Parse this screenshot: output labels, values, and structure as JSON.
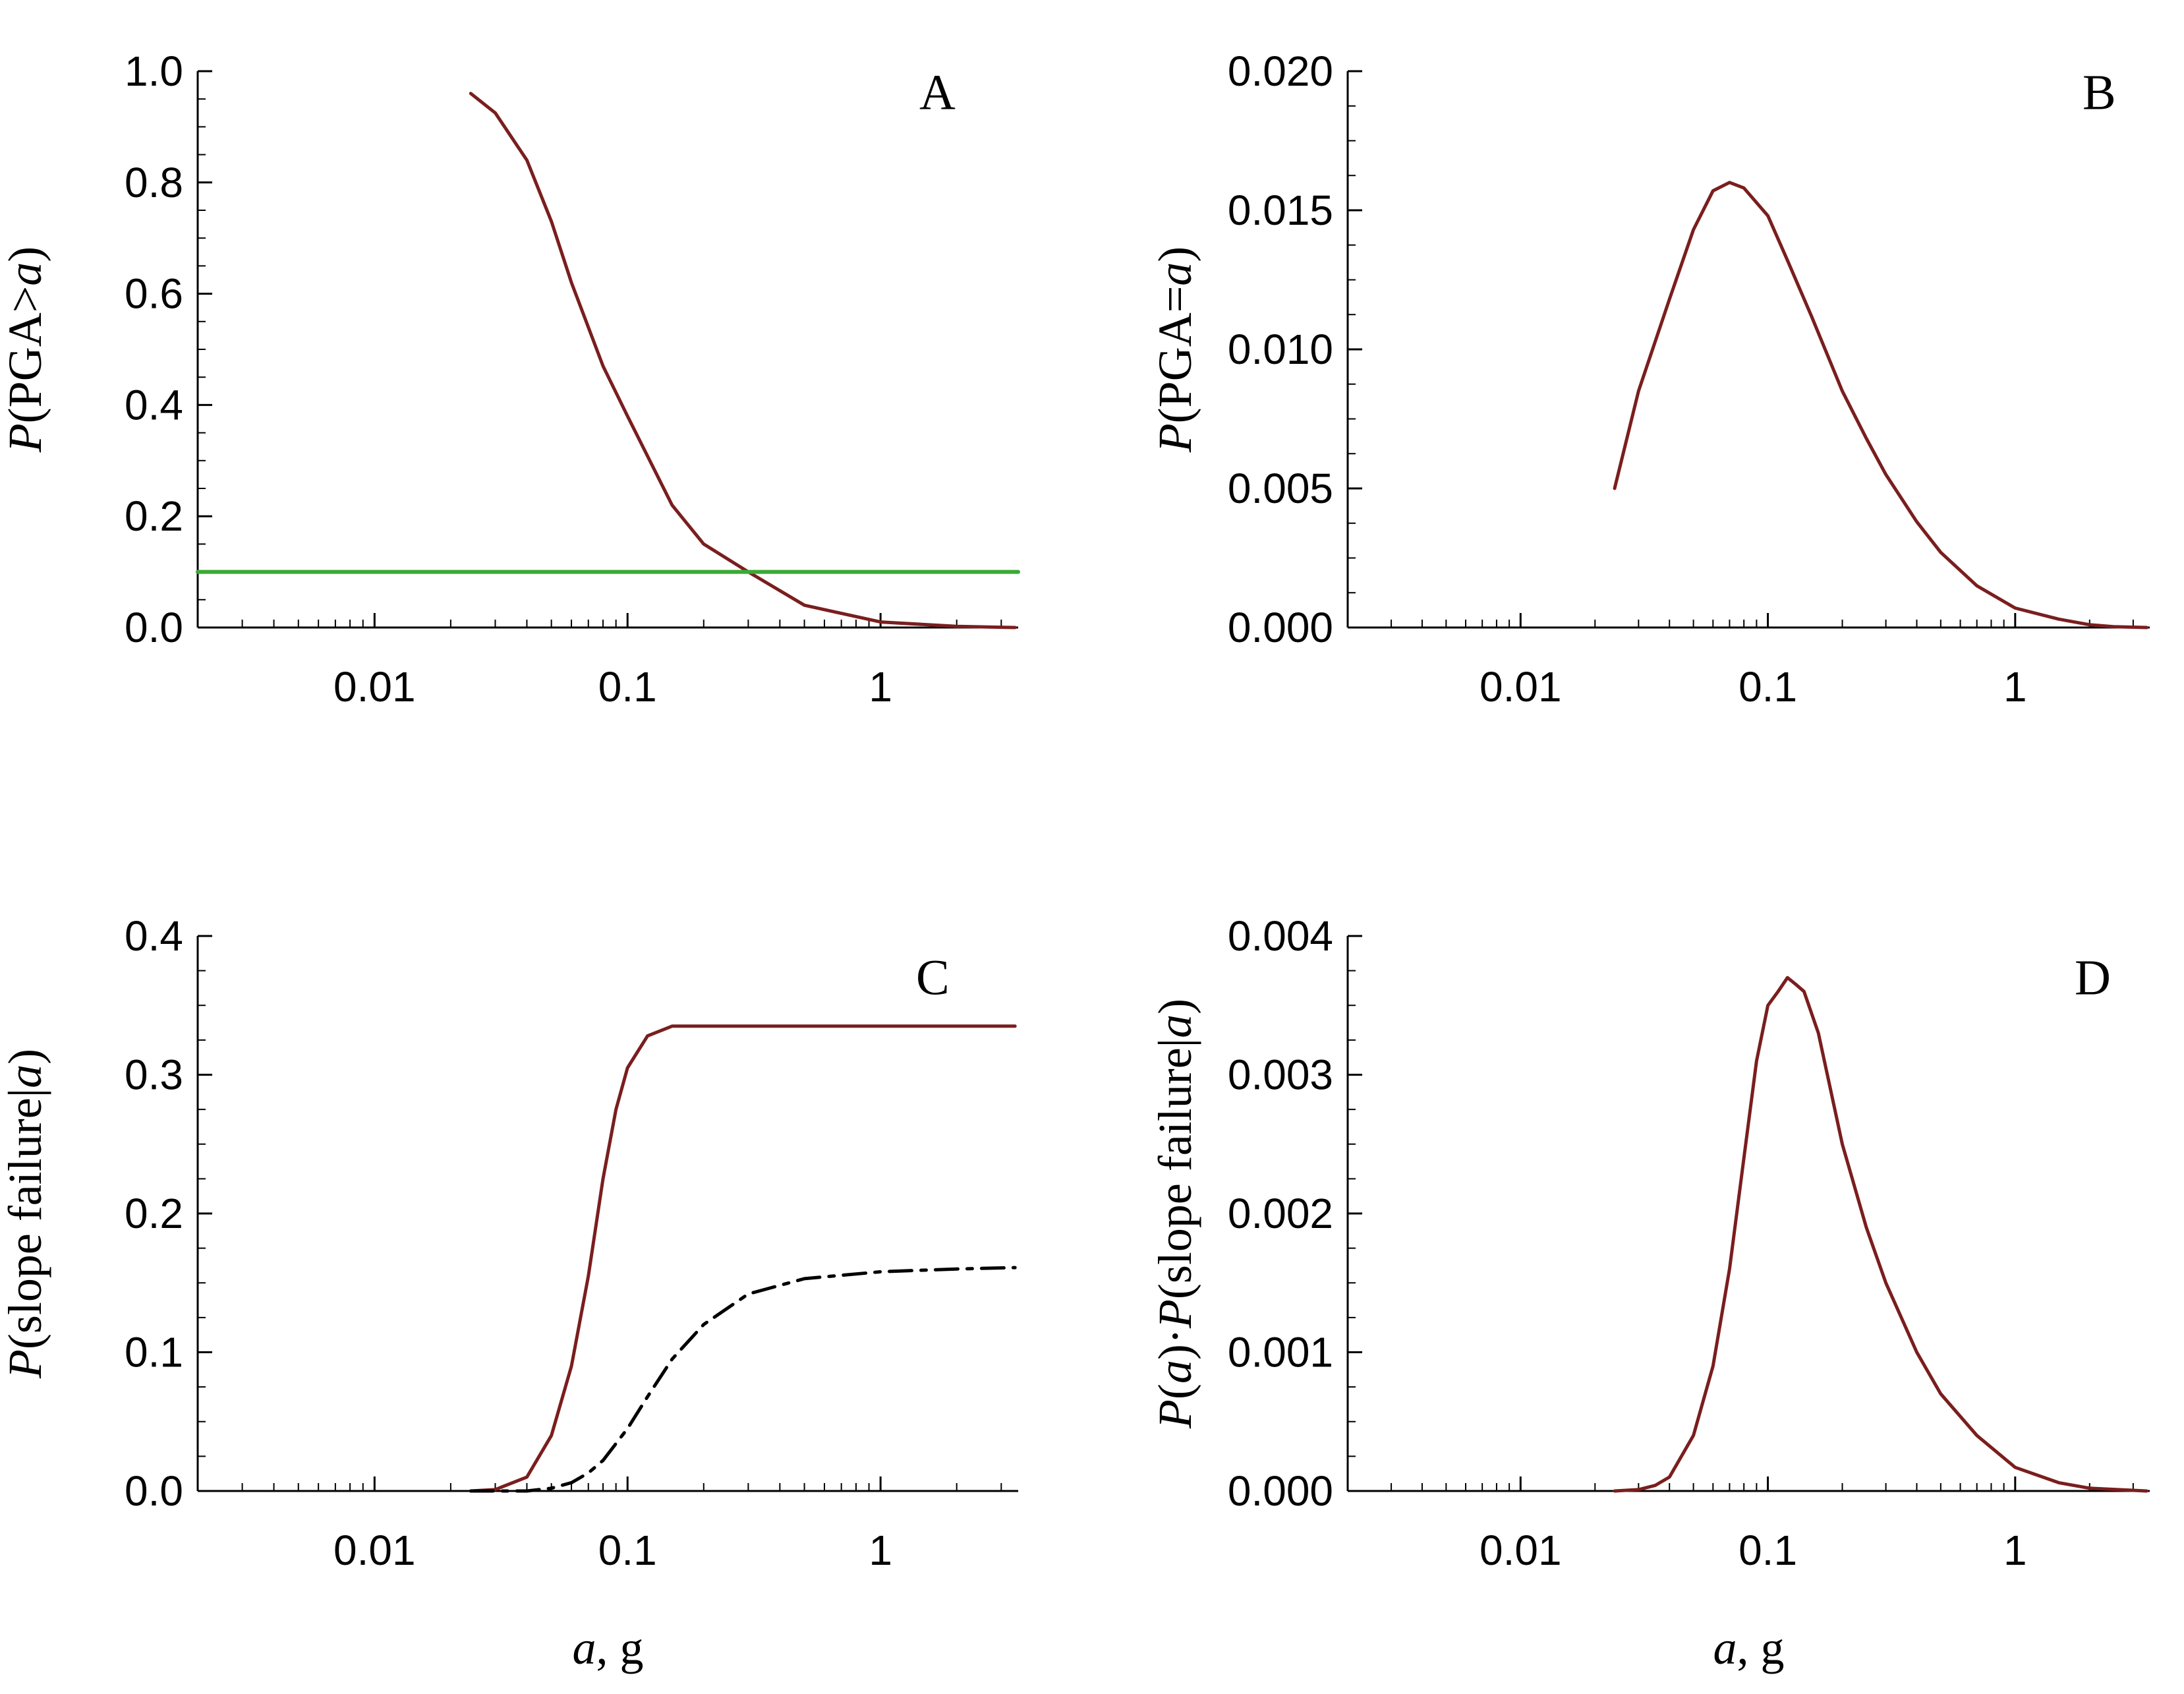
{
  "chart_data": [
    {
      "panel": "A",
      "type": "line",
      "panel_label": "A",
      "xscale": "log",
      "xlim": [
        0.002,
        3.5
      ],
      "xticks": [
        0.01,
        0.1,
        1
      ],
      "xtick_labels": [
        "0.01",
        "0.1",
        "1"
      ],
      "ylim": [
        0.0,
        1.0
      ],
      "yticks": [
        0.0,
        0.2,
        0.4,
        0.6,
        0.8,
        1.0
      ],
      "ytick_labels": [
        "0.0",
        "0.2",
        "0.4",
        "0.6",
        "0.8",
        "1.0"
      ],
      "ylabel_parts": [
        "P",
        "(PGA>",
        "a",
        ")"
      ],
      "xlabel_parts": [],
      "series": [
        {
          "name": "exceedance",
          "color": "#7a1e1e",
          "style": "solid",
          "x": [
            0.024,
            0.03,
            0.04,
            0.05,
            0.06,
            0.08,
            0.1,
            0.15,
            0.2,
            0.3,
            0.5,
            1.0,
            2.0,
            3.4
          ],
          "y": [
            0.96,
            0.925,
            0.84,
            0.73,
            0.62,
            0.47,
            0.38,
            0.22,
            0.15,
            0.1,
            0.04,
            0.01,
            0.002,
            0.0
          ]
        },
        {
          "name": "threshold",
          "color": "#3aaa35",
          "style": "solid",
          "x": [
            0.002,
            3.5
          ],
          "y": [
            0.1,
            0.1
          ]
        }
      ]
    },
    {
      "panel": "B",
      "type": "line",
      "panel_label": "B",
      "xscale": "log",
      "xlim": [
        0.002,
        3.5
      ],
      "xticks": [
        0.01,
        0.1,
        1
      ],
      "xtick_labels": [
        "0.01",
        "0.1",
        "1"
      ],
      "ylim": [
        0.0,
        0.02
      ],
      "yticks": [
        0.0,
        0.005,
        0.01,
        0.015,
        0.02
      ],
      "ytick_labels": [
        "0.000",
        "0.005",
        "0.010",
        "0.015",
        "0.020"
      ],
      "ylabel_parts": [
        "P",
        "(PGA=",
        "a",
        ")"
      ],
      "xlabel_parts": [],
      "series": [
        {
          "name": "pga-probability",
          "color": "#7a1e1e",
          "style": "solid",
          "x": [
            0.024,
            0.03,
            0.04,
            0.05,
            0.06,
            0.07,
            0.08,
            0.1,
            0.12,
            0.15,
            0.2,
            0.25,
            0.3,
            0.4,
            0.5,
            0.7,
            1.0,
            1.5,
            2.0,
            2.5,
            3.4
          ],
          "y": [
            0.005,
            0.0085,
            0.0118,
            0.0143,
            0.0157,
            0.016,
            0.0158,
            0.0148,
            0.0132,
            0.0112,
            0.0085,
            0.0068,
            0.0055,
            0.0038,
            0.0027,
            0.0015,
            0.0007,
            0.0003,
            0.0001,
            3e-05,
            0.0
          ]
        }
      ]
    },
    {
      "panel": "C",
      "type": "line",
      "panel_label": "C",
      "xscale": "log",
      "xlim": [
        0.002,
        3.5
      ],
      "xticks": [
        0.01,
        0.1,
        1
      ],
      "xtick_labels": [
        "0.01",
        "0.1",
        "1"
      ],
      "ylim": [
        0.0,
        0.4
      ],
      "yticks": [
        0.0,
        0.1,
        0.2,
        0.3,
        0.4
      ],
      "ytick_labels": [
        "0.0",
        "0.1",
        "0.2",
        "0.3",
        "0.4"
      ],
      "ylabel_parts": [
        "P",
        "(slope failure|",
        "a",
        ")"
      ],
      "xlabel_parts": [
        "a",
        ", g"
      ],
      "series": [
        {
          "name": "conditional-failure-solid",
          "color": "#7a1e1e",
          "style": "solid",
          "x": [
            0.024,
            0.03,
            0.04,
            0.05,
            0.06,
            0.07,
            0.08,
            0.09,
            0.1,
            0.12,
            0.15,
            0.2,
            0.5,
            1.0,
            3.4
          ],
          "y": [
            0.0,
            0.001,
            0.01,
            0.04,
            0.09,
            0.155,
            0.225,
            0.275,
            0.305,
            0.328,
            0.335,
            0.335,
            0.335,
            0.335,
            0.335
          ]
        },
        {
          "name": "conditional-failure-dashed",
          "color": "#000000",
          "style": "dashed",
          "x": [
            0.024,
            0.04,
            0.05,
            0.06,
            0.07,
            0.08,
            0.1,
            0.12,
            0.15,
            0.2,
            0.3,
            0.5,
            1.0,
            2.0,
            3.4
          ],
          "y": [
            0.0,
            0.0,
            0.002,
            0.006,
            0.013,
            0.022,
            0.045,
            0.068,
            0.095,
            0.12,
            0.142,
            0.153,
            0.158,
            0.16,
            0.161
          ]
        }
      ]
    },
    {
      "panel": "D",
      "type": "line",
      "panel_label": "D",
      "xscale": "log",
      "xlim": [
        0.002,
        3.5
      ],
      "xticks": [
        0.01,
        0.1,
        1
      ],
      "xtick_labels": [
        "0.01",
        "0.1",
        "1"
      ],
      "ylim": [
        0.0,
        0.004
      ],
      "yticks": [
        0.0,
        0.001,
        0.002,
        0.003,
        0.004
      ],
      "ytick_labels": [
        "0.000",
        "0.001",
        "0.002",
        "0.003",
        "0.004"
      ],
      "ylabel_parts": [
        "P",
        "(",
        "a",
        ")·",
        "P",
        "(slope failure|",
        "a",
        ")"
      ],
      "xlabel_parts": [
        "a",
        ", g"
      ],
      "series": [
        {
          "name": "joint-probability",
          "color": "#7a1e1e",
          "style": "solid",
          "x": [
            0.024,
            0.03,
            0.035,
            0.04,
            0.05,
            0.06,
            0.07,
            0.08,
            0.09,
            0.1,
            0.11,
            0.12,
            0.13,
            0.14,
            0.16,
            0.2,
            0.25,
            0.3,
            0.4,
            0.5,
            0.7,
            1.0,
            1.5,
            2.0,
            3.4
          ],
          "y": [
            0.0,
            1e-05,
            4e-05,
            0.0001,
            0.0004,
            0.0009,
            0.0016,
            0.0024,
            0.0031,
            0.0035,
            0.0036,
            0.0037,
            0.00365,
            0.0036,
            0.0033,
            0.0025,
            0.0019,
            0.0015,
            0.001,
            0.0007,
            0.0004,
            0.00017,
            6e-05,
            2e-05,
            0.0
          ]
        }
      ]
    }
  ]
}
